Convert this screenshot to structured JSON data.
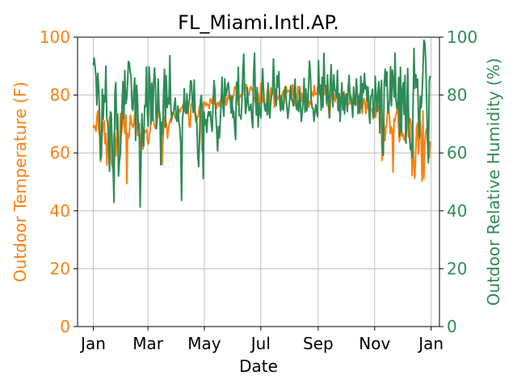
{
  "chart_data": {
    "type": "line",
    "title": "FL_Miami.Intl.AP.",
    "xlabel": "Date",
    "x_ticks": [
      "Jan",
      "Mar",
      "May",
      "Jul",
      "Sep",
      "Nov",
      "Jan"
    ],
    "x_tick_days": [
      0,
      59,
      120,
      181,
      243,
      304,
      365
    ],
    "x_range_days": [
      -17,
      374
    ],
    "grid": true,
    "left_axis": {
      "label": "Outdoor Temperature (F)",
      "ylim": [
        0,
        100
      ],
      "ticks": [
        0,
        20,
        40,
        60,
        80,
        100
      ],
      "color": "#ff7f0e"
    },
    "right_axis": {
      "label": "Outdoor Relative Humidity (%)",
      "ylim": [
        0,
        100
      ],
      "ticks": [
        0,
        20,
        40,
        60,
        80,
        100
      ],
      "color": "#2e8b57"
    },
    "series": [
      {
        "axis": "left",
        "color": "#ff7f0e",
        "values": [
          68.6,
          69.5,
          68.7,
          67.5,
          72.4,
          74.5,
          68.3,
          65.9,
          57,
          61.2,
          66.7,
          70.5,
          71.1,
          63.2,
          66.7,
          55.8,
          62.6,
          66.2,
          72.4,
          72.8,
          56.7,
          55.2,
          59.6,
          66.8,
          64.8,
          59,
          66.4,
          72.5,
          52.9,
          61.7,
          73.6,
          66.3,
          69.5,
          74.3,
          69.8,
          66.6,
          73.2,
          49.4,
          66.7,
          65.2,
          67.4,
          73.1,
          70.9,
          69.4,
          68.8,
          70.6,
          73.9,
          75.9,
          71.7,
          66,
          67.6,
          64.7,
          63,
          66.8,
          62.4,
          61.3,
          66,
          67.7,
          67.2,
          68.1,
          63.5,
          63.1,
          66.3,
          68.2,
          72.5,
          75.4,
          72.9,
          70.1,
          69.2,
          68.3,
          71.3,
          74.2,
          75.9,
          72.2,
          71.6,
          58.8,
          56,
          64.5,
          70.4,
          72.7,
          71,
          69.7,
          65.1,
          68.4,
          70.4,
          71.7,
          70.6,
          72.9,
          74,
          73.6,
          72.6,
          72,
          71.9,
          72.3,
          73.3,
          75,
          74.2,
          75.6,
          75.7,
          76.6,
          75,
          74.3,
          77.2,
          75.6,
          76.8,
          73.9,
          69.2,
          68.9,
          76.9,
          77,
          78.9,
          78.5,
          74.5,
          71.2,
          70.3,
          72.7,
          72.6,
          75.6,
          76.8,
          71.1,
          60.8,
          73.9,
          77.6,
          77.4,
          76.3,
          77.3,
          76.5,
          76.6,
          75.3,
          78.7,
          78.2,
          77.1,
          79,
          79.6,
          76.9,
          76.9,
          75.3,
          77.2,
          77.5,
          76,
          77.9,
          78.5,
          79.2,
          77.3,
          76.5,
          76.6,
          79.7,
          76.5,
          78.5,
          79.9,
          78.6,
          79.6,
          75.2,
          78,
          78.5,
          79.8,
          82.8,
          82.2,
          82.8,
          78.6,
          76.5,
          78.8,
          79.6,
          80.2,
          79.1,
          82.1,
          84.2,
          79.9,
          83.3,
          83.6,
          80.3,
          79.9,
          80,
          82.1,
          83,
          82,
          81.5,
          79.4,
          78.8,
          77.4,
          81.2,
          76.9,
          80.5,
          77.3,
          76.9,
          84.1,
          81,
          77.7,
          79.2,
          76.5,
          76.8,
          76.8,
          81,
          82.3,
          76.3,
          79.6,
          82.5,
          81.1,
          80.3,
          81.8,
          75.8,
          78.5,
          82.2,
          78.3,
          79,
          79.6,
          79.9,
          77.6,
          79.4,
          80.7,
          81.5,
          77.3,
          80.6,
          82.9,
          80.8,
          81.7,
          81.3,
          80.9,
          81.4,
          78.4,
          83.6,
          81.5,
          76.5,
          80.9,
          78.7,
          78,
          83,
          80.9,
          82.9,
          77.1,
          80.7,
          77.9,
          79.5,
          82.4,
          80.1,
          78.7,
          78.5,
          80.5,
          75.8,
          77.7,
          76.9,
          81.2,
          80.4,
          79.6,
          83.3,
          80.2,
          80.5,
          80.5,
          83.3,
          80.4,
          80.1,
          79.9,
          77,
          79.3,
          80.3,
          80.2,
          83.2,
          81.8,
          76.3,
          80.7,
          74.5,
          72.3,
          77.6,
          82.1,
          78.7,
          80.8,
          78.9,
          77.8,
          81.5,
          81.8,
          75.2,
          79.5,
          79.1,
          79.4,
          78.7,
          80.1,
          78.8,
          81.1,
          76.8,
          80.2,
          76,
          76.8,
          76.8,
          77.1,
          80.5,
          76.8,
          77.8,
          79,
          79.6,
          80.4,
          77.7,
          76.8,
          77.5,
          78.1,
          80.5,
          75.6,
          76.4,
          73.6,
          77.4,
          78.9,
          76.8,
          73.6,
          79.1,
          75.4,
          79.8,
          71.8,
          75.3,
          75.3,
          74.8,
          71.9,
          72.6,
          75.9,
          72.4,
          77.1,
          74.6,
          76.2,
          74.6,
          72.5,
          70.1,
          57.4,
          67.2,
          70.2,
          64.2,
          68.4,
          69.9,
          74.7,
          76.2,
          72.5,
          66.7,
          69.1,
          67.8,
          53.3,
          71.7,
          71,
          73,
          74.1,
          76.2,
          69.5,
          63.8,
          66.3,
          70.2,
          65.8,
          66.6,
          64.8,
          64.3,
          68.3,
          75.4,
          72.4,
          65.6,
          71.5,
          71.8,
          69.9,
          52.2,
          67.4,
          55.6,
          51.3,
          59.7,
          68.8,
          70.3,
          59.7,
          66.1,
          71.1,
          65.6,
          50.3,
          74.5,
          51.1,
          62.7,
          66.9,
          68.4,
          66.5,
          65.7,
          58.3,
          64
        ]
      },
      {
        "axis": "right",
        "color": "#2e8b57",
        "values": [
          90.3,
          92.8,
          89.8,
          86.2,
          76.6,
          87.5,
          82.8,
          72.9,
          57.6,
          58.7,
          82,
          71.6,
          80,
          77.6,
          90,
          71.9,
          70.4,
          63.6,
          53.7,
          74.2,
          73.6,
          62.1,
          54.9,
          42.9,
          80.6,
          84.3,
          68.2,
          73.4,
          52,
          57.3,
          59.4,
          67.5,
          77.2,
          84.6,
          71.8,
          88.5,
          77,
          78.5,
          83.6,
          91.6,
          91.1,
          87.8,
          86.6,
          75.6,
          74.7,
          81.4,
          85.9,
          64.3,
          83.4,
          79.5,
          68.1,
          70.3,
          41.3,
          57.7,
          73.5,
          64.7,
          62.4,
          76.4,
          76,
          89.7,
          73.8,
          69.2,
          89.7,
          83.2,
          70,
          84.1,
          71.2,
          83.7,
          89.4,
          83,
          68.4,
          71.8,
          85.5,
          75.5,
          72.6,
          55.9,
          70.6,
          66.4,
          80.5,
          88.9,
          68.9,
          86.7,
          75.7,
          79.1,
          76.9,
          93.6,
          76.3,
          71.5,
          73.7,
          73.5,
          76.6,
          78.9,
          71.9,
          70.9,
          76.2,
          70.5,
          68.9,
          63.6,
          43.6,
          71.8,
          74.5,
          82.2,
          74.4,
          73.6,
          80.5,
          73.7,
          76.9,
          78.8,
          85,
          84.5,
          77.7,
          74,
          85.2,
          74.5,
          72.4,
          70.1,
          59,
          55.3,
          65.8,
          78.4,
          79.9,
          74.2,
          51.2,
          74.2,
          69.7,
          71.5,
          67.1,
          72.6,
          74.3,
          72.7,
          74.3,
          69.7,
          67.4,
          76.7,
          84.9,
          81.7,
          73.1,
          67.7,
          60.7,
          69.1,
          65.2,
          71,
          78,
          86.2,
          76,
          72.7,
          85.6,
          79.7,
          80.6,
          83.4,
          84.3,
          80.2,
          79.5,
          73.8,
          79.7,
          72.2,
          74.4,
          68.6,
          64.6,
          84.4,
          78.6,
          89.6,
          72.9,
          72.9,
          71.7,
          77.6,
          88.1,
          94.1,
          82.5,
          73.6,
          76.3,
          82.6,
          77.2,
          74.6,
          75.3,
          76.9,
          71.6,
          68.7,
          87.6,
          94.5,
          78.6,
          73.1,
          82.6,
          69,
          77.1,
          74.1,
          72.1,
          80.3,
          89.1,
          81.9,
          76.2,
          74.5,
          77,
          73.1,
          84.2,
          74.2,
          72.1,
          77.4,
          80.1,
          81.3,
          92.5,
          83.3,
          78.6,
          76.3,
          86.7,
          82.8,
          88.1,
          77.8,
          74.5,
          79.7,
          75.3,
          74.8,
          81.1,
          82.9,
          79.3,
          75.7,
          72,
          75.2,
          78.5,
          83.2,
          78.7,
          77.9,
          76.3,
          80.9,
          85.5,
          76.4,
          74.9,
          77.9,
          74.3,
          81.7,
          76.3,
          70.9,
          74.5,
          77.8,
          85.8,
          74.1,
          82.1,
          74.5,
          77.4,
          83.2,
          91.7,
          87.5,
          78.4,
          75.5,
          75.5,
          70.9,
          73.9,
          76.7,
          73.9,
          72.5,
          92,
          80.7,
          83.4,
          74.8,
          86.1,
          75.8,
          94.4,
          83,
          83.3,
          77.2,
          86.9,
          78.8,
          72.1,
          83.1,
          90.5,
          82.1,
          75.9,
          87,
          82.2,
          81.1,
          79.1,
          88.5,
          74.6,
          80.5,
          70.9,
          78.2,
          84.2,
          74.9,
          80.8,
          73.5,
          79,
          80.4,
          74.3,
          82.7,
          86.8,
          78.4,
          79.5,
          76.9,
          72.3,
          82.7,
          77.2,
          76.4,
          85.6,
          81.4,
          73.5,
          79.7,
          73.8,
          86.5,
          75.6,
          84,
          80.8,
          87.5,
          82.1,
          83.3,
          77.9,
          82.8,
          74.6,
          70.2,
          79.4,
          80,
          82,
          72.4,
          72.4,
          86.5,
          79.4,
          74.3,
          81.2,
          84.6,
          66.9,
          81,
          85.1,
          61,
          59.1,
          83.8,
          89,
          83.1,
          88,
          73.8,
          75.7,
          78.2,
          89.8,
          76.3,
          88.6,
          85.3,
          79.2,
          94.4,
          78.6,
          75.3,
          75.2,
          86.1,
          65.8,
          89.6,
          67.1,
          81.8,
          84.3,
          73.3,
          86.8,
          63.4,
          71.5,
          89.2,
          73.4,
          65.6,
          61.2,
          63.1,
          58.3,
          76.1,
          96.1,
          82.3,
          87.1,
          82.7,
          85.5,
          72.5,
          65.2,
          79.5,
          75.6,
          80.5,
          89,
          99,
          98.2,
          92,
          79.6,
          64.3,
          56.6,
          85.1,
          86.6
        ]
      }
    ]
  }
}
